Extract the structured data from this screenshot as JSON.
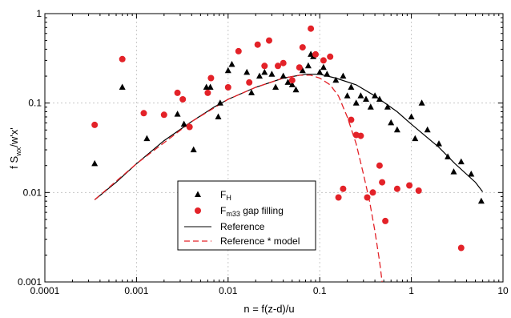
{
  "chart_data": {
    "type": "scatter",
    "xscale": "log",
    "yscale": "log",
    "xlim": [
      0.0001,
      10
    ],
    "ylim": [
      0.001,
      1
    ],
    "xticks": [
      "0.0001",
      "0.001",
      "0.01",
      "0.1",
      "1",
      "10"
    ],
    "yticks": [
      "0.001",
      "0.01",
      "0.1",
      "1"
    ],
    "grid": true,
    "legend_position": "bottom-left",
    "xlabel": "n = f(z-d)/u",
    "ylabel_parts": [
      "f S",
      "wx",
      "/w'x'"
    ],
    "series": [
      {
        "name": "F",
        "name_sub": "H",
        "marker": "triangle",
        "color": "#000000",
        "points": [
          [
            0.00035,
            0.021
          ],
          [
            0.0007,
            0.15
          ],
          [
            0.0013,
            0.04
          ],
          [
            0.0028,
            0.075
          ],
          [
            0.0033,
            0.058
          ],
          [
            0.0042,
            0.03
          ],
          [
            0.0058,
            0.15
          ],
          [
            0.0064,
            0.15
          ],
          [
            0.0078,
            0.07
          ],
          [
            0.0082,
            0.1
          ],
          [
            0.01,
            0.23
          ],
          [
            0.011,
            0.27
          ],
          [
            0.016,
            0.22
          ],
          [
            0.018,
            0.13
          ],
          [
            0.022,
            0.2
          ],
          [
            0.025,
            0.22
          ],
          [
            0.03,
            0.21
          ],
          [
            0.033,
            0.15
          ],
          [
            0.04,
            0.2
          ],
          [
            0.045,
            0.17
          ],
          [
            0.05,
            0.16
          ],
          [
            0.055,
            0.14
          ],
          [
            0.065,
            0.23
          ],
          [
            0.075,
            0.26
          ],
          [
            0.08,
            0.35
          ],
          [
            0.085,
            0.33
          ],
          [
            0.1,
            0.22
          ],
          [
            0.11,
            0.25
          ],
          [
            0.12,
            0.21
          ],
          [
            0.15,
            0.18
          ],
          [
            0.18,
            0.2
          ],
          [
            0.2,
            0.12
          ],
          [
            0.22,
            0.15
          ],
          [
            0.25,
            0.1
          ],
          [
            0.28,
            0.12
          ],
          [
            0.32,
            0.11
          ],
          [
            0.36,
            0.09
          ],
          [
            0.4,
            0.12
          ],
          [
            0.45,
            0.11
          ],
          [
            0.55,
            0.09
          ],
          [
            0.6,
            0.06
          ],
          [
            0.7,
            0.05
          ],
          [
            1.0,
            0.07
          ],
          [
            1.1,
            0.04
          ],
          [
            1.3,
            0.1
          ],
          [
            1.5,
            0.05
          ],
          [
            2.0,
            0.035
          ],
          [
            2.5,
            0.025
          ],
          [
            2.9,
            0.017
          ],
          [
            3.5,
            0.022
          ],
          [
            4.5,
            0.016
          ],
          [
            5.8,
            0.008
          ]
        ]
      },
      {
        "name": "F",
        "name_sub": "m33",
        "name_suffix": " gap filling",
        "marker": "circle",
        "color": "#e32228",
        "points": [
          [
            0.00035,
            0.057
          ],
          [
            0.0007,
            0.31
          ],
          [
            0.0012,
            0.077
          ],
          [
            0.002,
            0.074
          ],
          [
            0.0028,
            0.13
          ],
          [
            0.0032,
            0.11
          ],
          [
            0.0038,
            0.054
          ],
          [
            0.006,
            0.13
          ],
          [
            0.0065,
            0.19
          ],
          [
            0.01,
            0.15
          ],
          [
            0.013,
            0.38
          ],
          [
            0.017,
            0.17
          ],
          [
            0.021,
            0.45
          ],
          [
            0.025,
            0.26
          ],
          [
            0.028,
            0.5
          ],
          [
            0.035,
            0.26
          ],
          [
            0.04,
            0.28
          ],
          [
            0.05,
            0.18
          ],
          [
            0.06,
            0.25
          ],
          [
            0.065,
            0.42
          ],
          [
            0.08,
            0.68
          ],
          [
            0.09,
            0.35
          ],
          [
            0.11,
            0.3
          ],
          [
            0.13,
            0.33
          ],
          [
            0.22,
            0.065
          ],
          [
            0.25,
            0.044
          ],
          [
            0.28,
            0.043
          ],
          [
            0.16,
            0.0088
          ],
          [
            0.18,
            0.011
          ],
          [
            0.33,
            0.0088
          ],
          [
            0.38,
            0.01
          ],
          [
            0.45,
            0.02
          ],
          [
            0.48,
            0.013
          ],
          [
            0.52,
            0.0048
          ],
          [
            0.7,
            0.011
          ],
          [
            0.95,
            0.012
          ],
          [
            1.2,
            0.0105
          ],
          [
            3.5,
            0.0024
          ]
        ]
      },
      {
        "name": "Reference",
        "marker": "line",
        "color": "#000000",
        "points": [
          [
            0.00035,
            0.0083
          ],
          [
            0.0006,
            0.013
          ],
          [
            0.001,
            0.021
          ],
          [
            0.002,
            0.038
          ],
          [
            0.004,
            0.062
          ],
          [
            0.007,
            0.09
          ],
          [
            0.01,
            0.11
          ],
          [
            0.02,
            0.15
          ],
          [
            0.04,
            0.19
          ],
          [
            0.07,
            0.21
          ],
          [
            0.1,
            0.21
          ],
          [
            0.15,
            0.19
          ],
          [
            0.25,
            0.16
          ],
          [
            0.4,
            0.12
          ],
          [
            0.7,
            0.08
          ],
          [
            1.0,
            0.058
          ],
          [
            2.0,
            0.032
          ],
          [
            3.0,
            0.021
          ],
          [
            5.0,
            0.013
          ],
          [
            6.0,
            0.0102
          ]
        ]
      },
      {
        "name": "Reference * model",
        "marker": "dashed",
        "color": "#e32228",
        "points": [
          [
            0.00035,
            0.0083
          ],
          [
            0.001,
            0.021
          ],
          [
            0.004,
            0.062
          ],
          [
            0.01,
            0.11
          ],
          [
            0.02,
            0.15
          ],
          [
            0.04,
            0.19
          ],
          [
            0.06,
            0.205
          ],
          [
            0.08,
            0.205
          ],
          [
            0.1,
            0.19
          ],
          [
            0.13,
            0.16
          ],
          [
            0.16,
            0.12
          ],
          [
            0.2,
            0.07
          ],
          [
            0.25,
            0.035
          ],
          [
            0.3,
            0.016
          ],
          [
            0.35,
            0.008
          ],
          [
            0.4,
            0.0037
          ],
          [
            0.45,
            0.0017
          ],
          [
            0.48,
            0.001
          ]
        ]
      }
    ]
  }
}
